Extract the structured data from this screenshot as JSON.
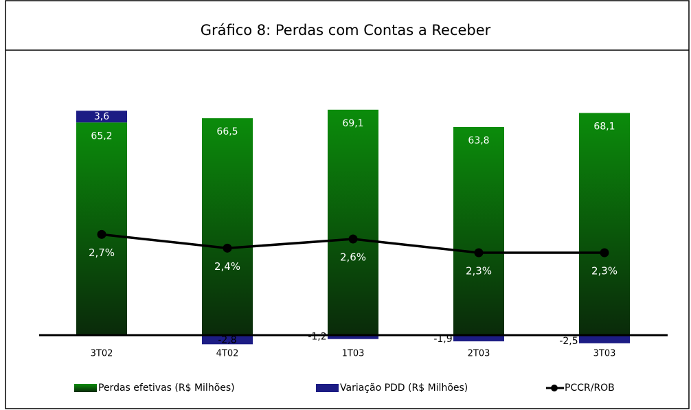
{
  "chart_data": {
    "type": "bar",
    "stacked": true,
    "title": "Gráfico 8: Perdas com Contas a Receber",
    "categories": [
      "3T02",
      "4T02",
      "1T03",
      "2T03",
      "3T03"
    ],
    "series": [
      {
        "name": "Perdas efetivas (R$ Milhões)",
        "color": "#0b8c0b",
        "values": [
          65.2,
          66.5,
          69.1,
          63.8,
          68.1
        ],
        "value_labels": [
          "65,2",
          "66,5",
          "69,1",
          "63,8",
          "68,1"
        ]
      },
      {
        "name": "Variação PDD (R$ Milhões)",
        "color": "#1c1c84",
        "values": [
          3.6,
          -2.8,
          -1.2,
          -1.9,
          -2.5
        ],
        "value_labels": [
          "3,6",
          "-2,8",
          "-1,2",
          "-1,9",
          "-2,5"
        ]
      },
      {
        "name": "PCCR/ROB",
        "type": "line",
        "axis": "y2",
        "color": "#000000",
        "values": [
          2.7,
          2.4,
          2.6,
          2.3,
          2.3
        ],
        "value_labels": [
          "2,7%",
          "2,4%",
          "2,6%",
          "2,3%",
          "2,3%"
        ]
      }
    ],
    "ylim": [
      0,
      80
    ],
    "y2lim": [
      0.5,
      6.2
    ],
    "legend": "bottom"
  }
}
